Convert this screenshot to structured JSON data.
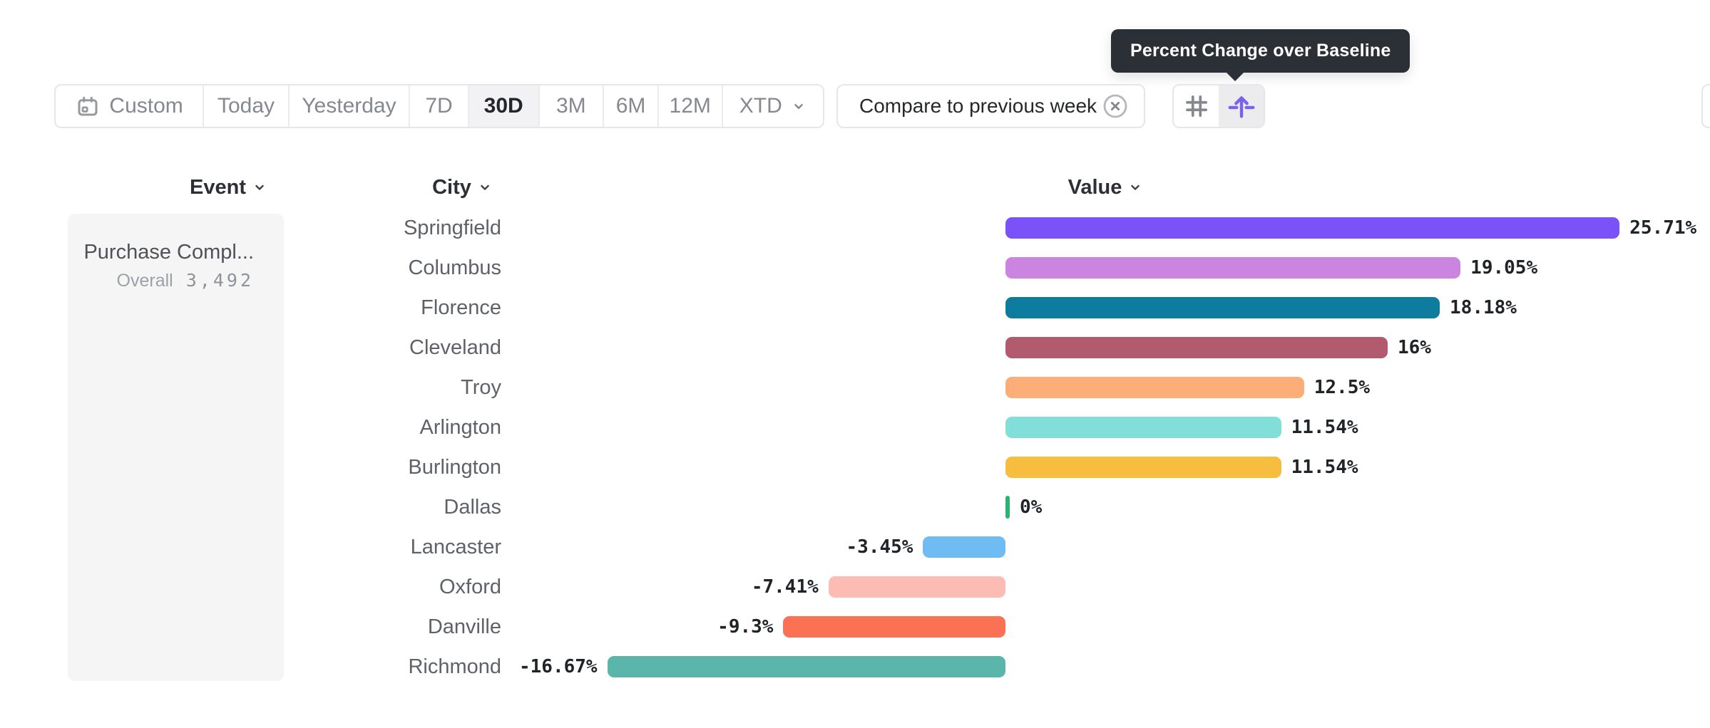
{
  "tooltip": {
    "text": "Percent Change over Baseline"
  },
  "toolbar": {
    "items": [
      "Custom",
      "Today",
      "Yesterday",
      "7D",
      "30D",
      "3M",
      "6M",
      "12M",
      "XTD"
    ],
    "selected": "30D",
    "compare_label": "Compare to previous week"
  },
  "headers": {
    "event": "Event",
    "city": "City",
    "value": "Value"
  },
  "event_card": {
    "title": "Purchase Compl...",
    "overall_label": "Overall",
    "overall_value": "3,492"
  },
  "chart_data": {
    "type": "bar",
    "orientation": "horizontal",
    "title": "Percent Change over Baseline",
    "value_format": "percent",
    "categories": [
      "Springfield",
      "Columbus",
      "Florence",
      "Cleveland",
      "Troy",
      "Arlington",
      "Burlington",
      "Dallas",
      "Lancaster",
      "Oxford",
      "Danville",
      "Richmond"
    ],
    "values": [
      25.71,
      19.05,
      18.18,
      16,
      12.5,
      11.54,
      11.54,
      0,
      -3.45,
      -7.41,
      -9.3,
      -16.67
    ],
    "labels": [
      "25.71%",
      "19.05%",
      "18.18%",
      "16%",
      "12.5%",
      "11.54%",
      "11.54%",
      "0%",
      "-3.45%",
      "-7.41%",
      "-9.3%",
      "-16.67%"
    ],
    "colors": [
      "#7B52FA",
      "#CB84E0",
      "#0E7C9E",
      "#B25A6E",
      "#FDAE78",
      "#82DED8",
      "#F7BD3E",
      "#2FB173",
      "#6FBCF2",
      "#FCBCB4",
      "#FB7153",
      "#5AB5AB"
    ],
    "xlim": [
      -16.67,
      25.71
    ],
    "grid": false,
    "legend": false
  },
  "accent_color": "#7B61F0"
}
